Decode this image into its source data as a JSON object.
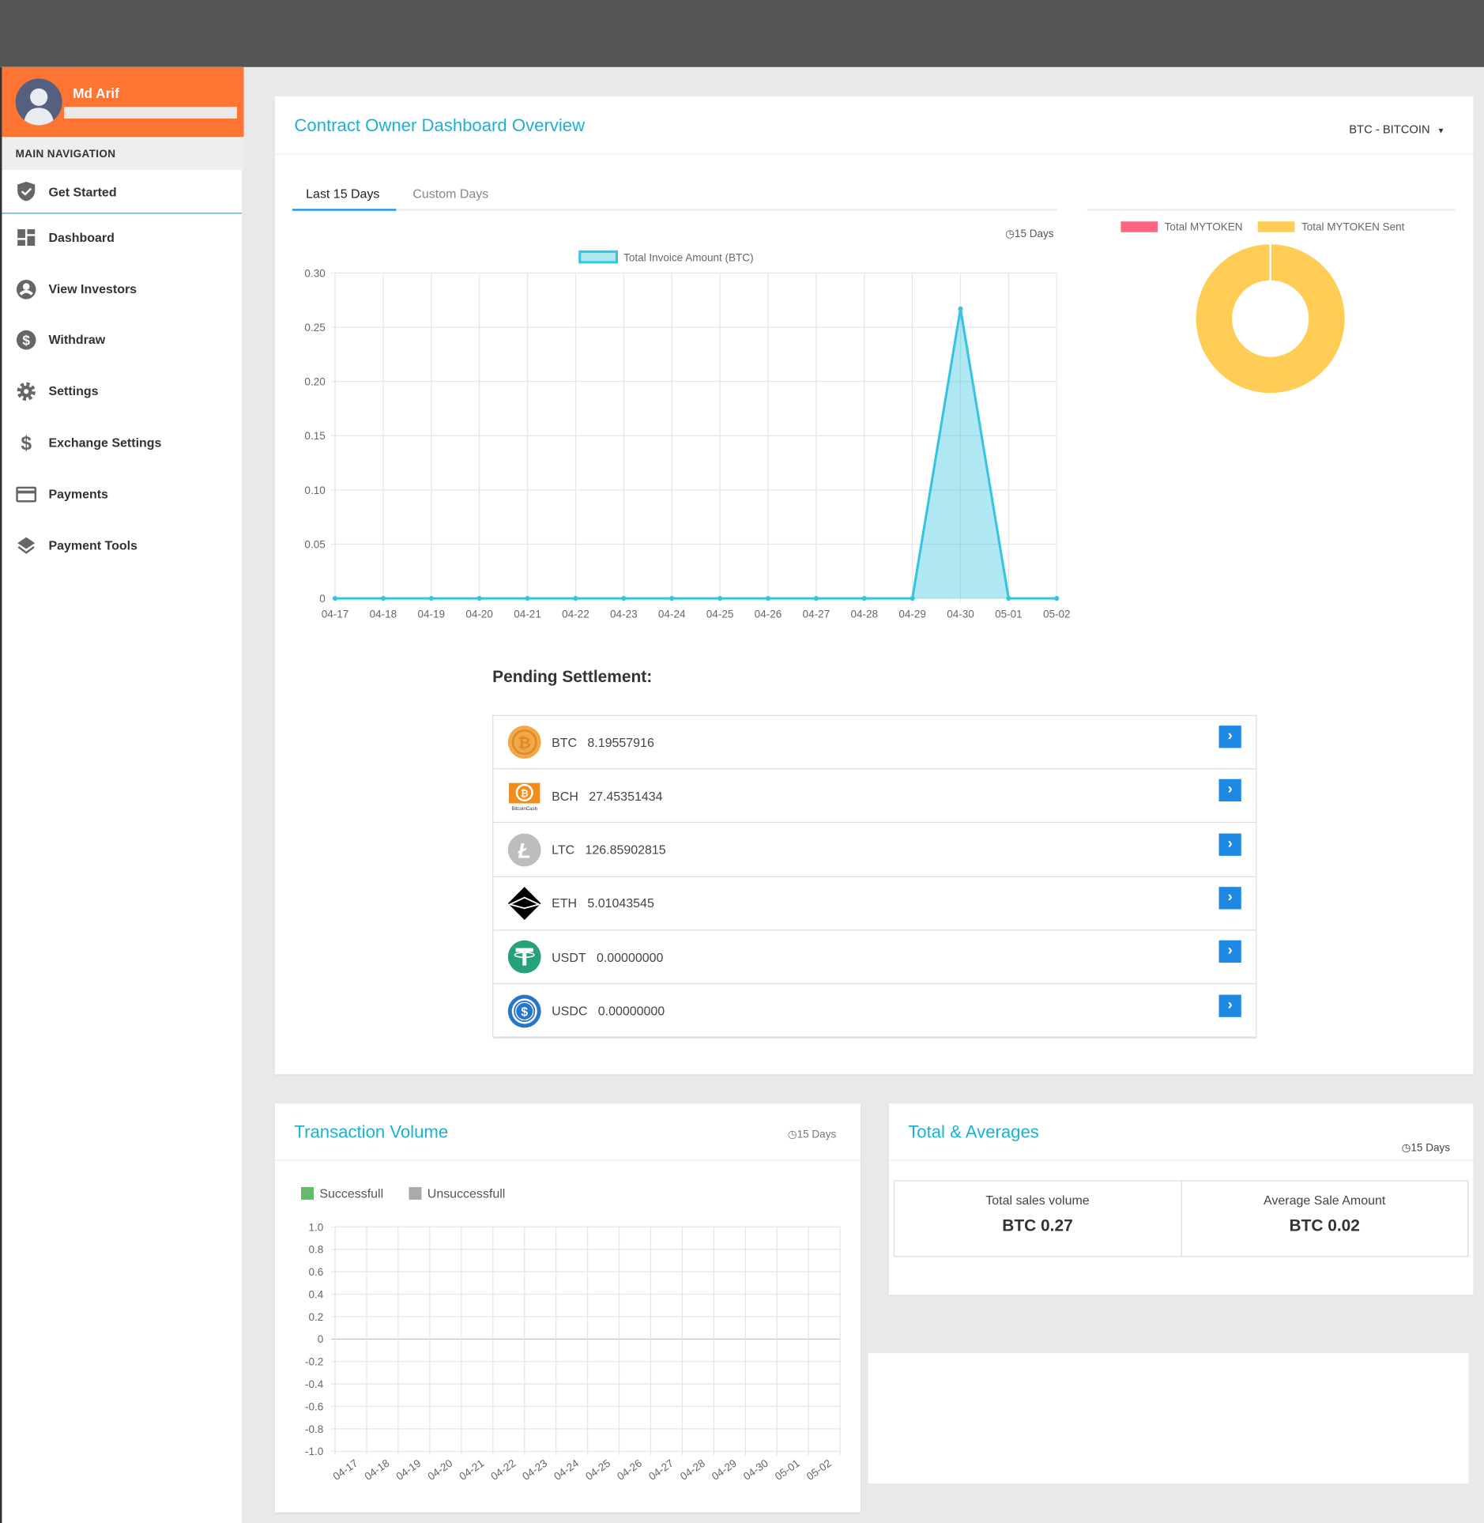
{
  "user": {
    "name": "Md Arif"
  },
  "sidebar": {
    "section_label": "MAIN NAVIGATION",
    "items": [
      {
        "label": "Get Started",
        "icon": "shield-check-icon"
      },
      {
        "label": "Dashboard",
        "icon": "dashboard-icon"
      },
      {
        "label": "View Investors",
        "icon": "user-circle-icon"
      },
      {
        "label": "Withdraw",
        "icon": "dollar-circle-icon"
      },
      {
        "label": "Settings",
        "icon": "gear-icon"
      },
      {
        "label": "Exchange Settings",
        "icon": "dollar-icon"
      },
      {
        "label": "Payments",
        "icon": "credit-card-icon"
      },
      {
        "label": "Payment Tools",
        "icon": "layers-icon"
      }
    ]
  },
  "overview": {
    "title": "Contract Owner Dashboard Overview",
    "currency_select": "BTC - BITCOIN",
    "tabs": [
      {
        "label": "Last 15 Days"
      },
      {
        "label": "Custom Days"
      }
    ],
    "period": "15 Days",
    "pending_title": "Pending Settlement:",
    "pending": [
      {
        "symbol": "BTC",
        "amount": "8.19557916"
      },
      {
        "symbol": "BCH",
        "amount": "27.45351434"
      },
      {
        "symbol": "LTC",
        "amount": "126.85902815"
      },
      {
        "symbol": "ETH",
        "amount": "5.01043545"
      },
      {
        "symbol": "USDT",
        "amount": "0.00000000"
      },
      {
        "symbol": "USDC",
        "amount": "0.00000000"
      }
    ]
  },
  "transaction_volume": {
    "title": "Transaction Volume",
    "period": "15 Days"
  },
  "totals": {
    "title": "Total & Averages",
    "period": "15 Days",
    "stats": [
      {
        "label": "Total sales volume",
        "value": "BTC 0.27"
      },
      {
        "label": "Average Sale Amount",
        "value": "BTC 0.02"
      }
    ]
  },
  "colors": {
    "accent": "#1cb1d3",
    "header": "#fe7433",
    "line": "#36c5de",
    "donut_sent": "#ffcd56",
    "donut_total": "#ff6384",
    "success": "#66bb6a",
    "fail": "#aaaaaa"
  },
  "chart_data": [
    {
      "type": "area",
      "legend": [
        "Total Invoice Amount (BTC)"
      ],
      "x": [
        "04-17",
        "04-18",
        "04-19",
        "04-20",
        "04-21",
        "04-22",
        "04-23",
        "04-24",
        "04-25",
        "04-26",
        "04-27",
        "04-28",
        "04-29",
        "04-30",
        "05-01",
        "05-02"
      ],
      "series": [
        {
          "name": "Total Invoice Amount (BTC)",
          "values": [
            0,
            0,
            0,
            0,
            0,
            0,
            0,
            0,
            0,
            0,
            0,
            0,
            0,
            0.267,
            0,
            0
          ]
        }
      ],
      "ylim": [
        0,
        0.3
      ],
      "yticks": [
        "0",
        "0.05",
        "0.10",
        "0.15",
        "0.20",
        "0.25",
        "0.30"
      ],
      "grid": true,
      "legend_position": "top"
    },
    {
      "type": "pie",
      "donut": true,
      "labels": [
        "Total MYTOKEN",
        "Total MYTOKEN Sent"
      ],
      "values": [
        0,
        1
      ],
      "legend_position": "top"
    },
    {
      "type": "bar",
      "legend": [
        "Successfull",
        "Unsuccessfull"
      ],
      "x": [
        "04-17",
        "04-18",
        "04-19",
        "04-20",
        "04-21",
        "04-22",
        "04-23",
        "04-24",
        "04-25",
        "04-26",
        "04-27",
        "04-28",
        "04-29",
        "04-30",
        "05-01",
        "05-02"
      ],
      "series": [
        {
          "name": "Successfull",
          "values": [
            0,
            0,
            0,
            0,
            0,
            0,
            0,
            0,
            0,
            0,
            0,
            0,
            0,
            0,
            0,
            0
          ]
        },
        {
          "name": "Unsuccessfull",
          "values": [
            0,
            0,
            0,
            0,
            0,
            0,
            0,
            0,
            0,
            0,
            0,
            0,
            0,
            0,
            0,
            0
          ]
        }
      ],
      "ylim": [
        -1,
        1
      ],
      "yticks": [
        "1.0",
        "0.8",
        "0.6",
        "0.4",
        "0.2",
        "0",
        "-0.2",
        "-0.4",
        "-0.6",
        "-0.8",
        "-1.0"
      ],
      "grid": true,
      "legend_position": "top-left"
    }
  ]
}
